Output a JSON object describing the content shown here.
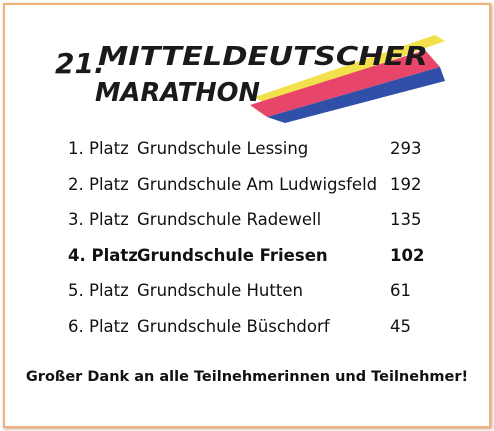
{
  "logo": {
    "number": "21.",
    "line1": "MITTELDEUTSCHER",
    "line2": "MARATHON"
  },
  "table": {
    "rows": [
      {
        "rank": "1. Platz",
        "school": "Grundschule Lessing",
        "points": 293,
        "bold": false
      },
      {
        "rank": "2. Platz",
        "school": "Grundschule Am Ludwigsfeld",
        "points": 192,
        "bold": false
      },
      {
        "rank": "3. Platz",
        "school": "Grundschule Radewell",
        "points": 135,
        "bold": false
      },
      {
        "rank": "4. Platz",
        "school": "Grundschule Friesen",
        "points": 102,
        "bold": true
      },
      {
        "rank": "5. Platz",
        "school": "Grundschule Hutten",
        "points": 61,
        "bold": false
      },
      {
        "rank": "6. Platz",
        "school": "Grundschule Büschdorf",
        "points": 45,
        "bold": false
      }
    ]
  },
  "footer": "Großer Dank an alle Teilnehmerinnen und Teilnehmer!"
}
